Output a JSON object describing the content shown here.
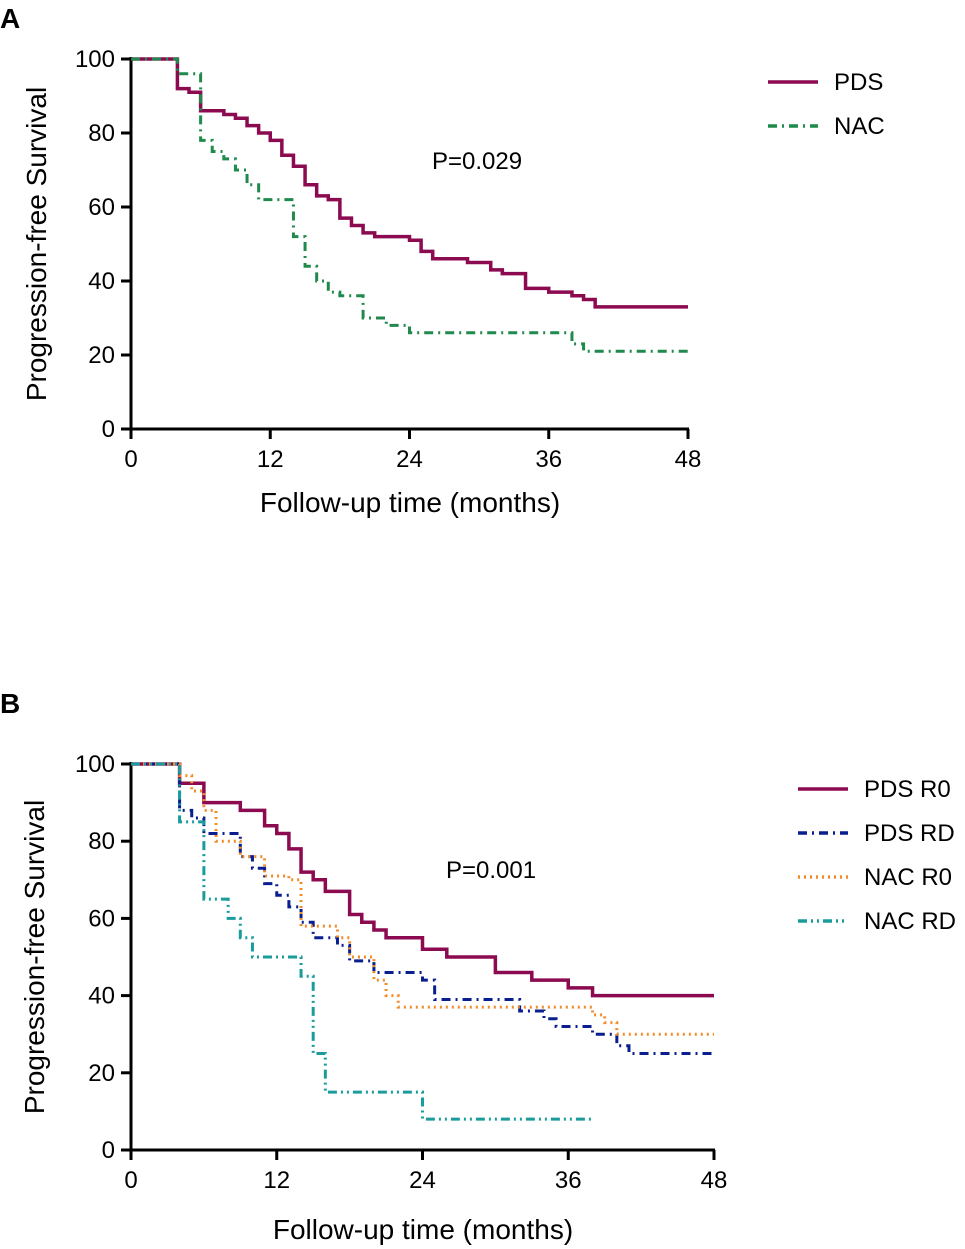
{
  "chart_data": [
    {
      "panel": "A",
      "type": "line",
      "step": true,
      "xlabel": "Follow-up time (months)",
      "ylabel": "Progression-free Survival",
      "xlim": [
        0,
        48
      ],
      "ylim": [
        0,
        100
      ],
      "xticks": [
        0,
        12,
        24,
        36,
        48
      ],
      "yticks": [
        0,
        20,
        40,
        60,
        80,
        100
      ],
      "annotation": "P=0.029",
      "legend_position": "top-right",
      "series": [
        {
          "name": "PDS",
          "color": "#8B0A50",
          "dash": "solid",
          "x": [
            0,
            4,
            5,
            6,
            8,
            9,
            10,
            11,
            12,
            13,
            14,
            15,
            16,
            17,
            18,
            19,
            20,
            21,
            24,
            25,
            26,
            29,
            31,
            32,
            34,
            36,
            38,
            39,
            40,
            48
          ],
          "y": [
            100,
            92,
            91,
            86,
            85,
            84,
            82,
            80,
            78,
            74,
            71,
            66,
            63,
            62,
            57,
            55,
            53,
            52,
            51,
            48,
            46,
            45,
            43,
            42,
            38,
            37,
            36,
            35,
            33,
            33
          ]
        },
        {
          "name": "NAC",
          "color": "#1F8A4C",
          "dash": "dashdot",
          "x": [
            0,
            4,
            6,
            7,
            8,
            9,
            10,
            11,
            13,
            14,
            15,
            16,
            17,
            18,
            20,
            22,
            24,
            38,
            39,
            48
          ],
          "y": [
            100,
            96,
            78,
            75,
            73,
            70,
            66,
            62,
            62,
            52,
            44,
            40,
            37,
            36,
            30,
            28,
            26,
            23,
            21,
            21
          ]
        }
      ]
    },
    {
      "panel": "B",
      "type": "line",
      "step": true,
      "xlabel": "Follow-up time (months)",
      "ylabel": "Progression-free Survival",
      "xlim": [
        0,
        48
      ],
      "ylim": [
        0,
        100
      ],
      "xticks": [
        0,
        12,
        24,
        36,
        48
      ],
      "yticks": [
        0,
        20,
        40,
        60,
        80,
        100
      ],
      "annotation": "P=0.001",
      "legend_position": "top-right",
      "series": [
        {
          "name": "PDS R0",
          "color": "#8B0A50",
          "dash": "solid",
          "x": [
            0,
            4,
            6,
            9,
            11,
            12,
            13,
            14,
            15,
            16,
            18,
            19,
            20,
            21,
            24,
            26,
            30,
            33,
            36,
            38,
            48
          ],
          "y": [
            100,
            95,
            90,
            88,
            84,
            82,
            78,
            72,
            70,
            67,
            61,
            59,
            57,
            55,
            52,
            50,
            46,
            44,
            42,
            40,
            40
          ]
        },
        {
          "name": "PDS RD",
          "color": "#0A1F8F",
          "dash": "dashdot",
          "x": [
            0,
            4,
            5,
            6,
            9,
            10,
            11,
            12,
            13,
            14,
            15,
            17,
            18,
            20,
            24,
            25,
            32,
            34,
            35,
            38,
            40,
            41,
            48
          ],
          "y": [
            100,
            88,
            86,
            82,
            76,
            73,
            69,
            66,
            63,
            59,
            55,
            53,
            49,
            46,
            44,
            39,
            36,
            34,
            32,
            30,
            27,
            25,
            25
          ]
        },
        {
          "name": "NAC R0",
          "color": "#F28C28",
          "dash": "dotted",
          "x": [
            0,
            4,
            5,
            6,
            7,
            9,
            11,
            13,
            14,
            17,
            18,
            20,
            21,
            22,
            32,
            38,
            39,
            40,
            48
          ],
          "y": [
            100,
            97,
            93,
            88,
            80,
            76,
            71,
            70,
            58,
            55,
            50,
            44,
            40,
            37,
            37,
            35,
            33,
            30,
            30
          ]
        },
        {
          "name": "NAC RD",
          "color": "#1A9C9C",
          "dash": "dashdotdot",
          "x": [
            0,
            4,
            6,
            8,
            9,
            10,
            14,
            15,
            16,
            24,
            38
          ],
          "y": [
            100,
            85,
            65,
            60,
            55,
            50,
            45,
            25,
            15,
            8,
            8
          ]
        }
      ]
    }
  ]
}
